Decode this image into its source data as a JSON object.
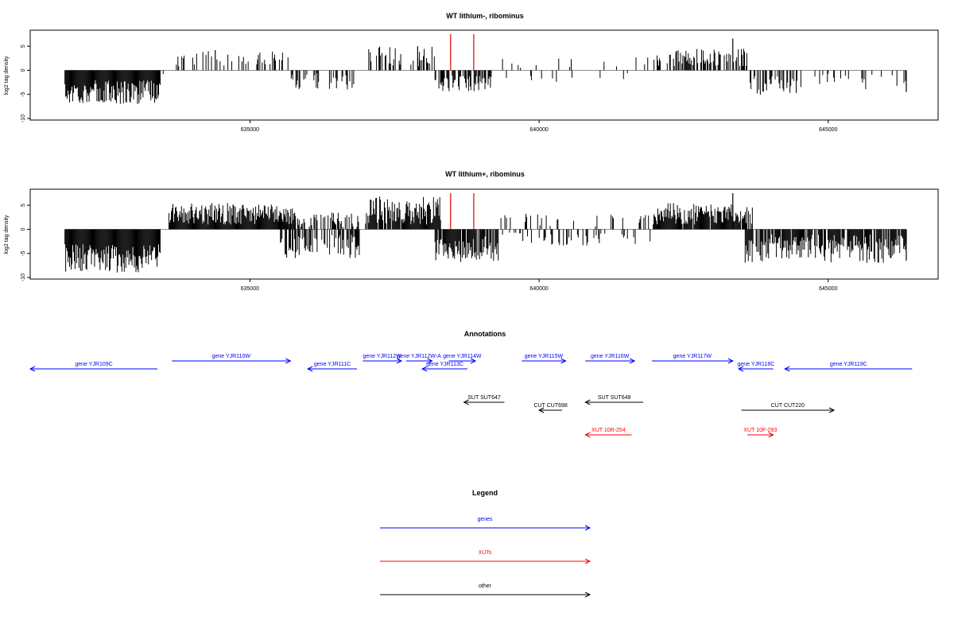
{
  "chart_data": [
    {
      "type": "bar",
      "title": "WT lithium-, ribominus",
      "xlabel": "",
      "ylabel": "log2 tag density",
      "xlim": [
        631200,
        646900
      ],
      "ylim": [
        -10,
        8
      ],
      "yticks": [
        -10,
        -5,
        0,
        5
      ],
      "xticks": [
        635000,
        640000,
        645000
      ],
      "xtick_labels": [
        "635000",
        "640000",
        "645000"
      ],
      "grid": false,
      "baseline": 0,
      "series": [
        {
          "values_by_region": [
            {
              "x_start": 631800,
              "x_end": 633450,
              "min": -7,
              "max": -2,
              "sign": -1,
              "density": 1.0
            },
            {
              "x_start": 633500,
              "x_end": 633540,
              "min": -0.8,
              "max": -0.2,
              "sign": -1,
              "density": 0.2
            },
            {
              "x_start": 633700,
              "x_end": 635700,
              "min": 0.8,
              "max": 4.2,
              "sign": 1,
              "density": 0.3
            },
            {
              "x_start": 635700,
              "x_end": 636800,
              "min": -4,
              "max": -0.6,
              "sign": -1,
              "density": 0.3
            },
            {
              "x_start": 637000,
              "x_end": 638200,
              "min": 0.8,
              "max": 5,
              "sign": 1,
              "density": 0.5
            },
            {
              "x_start": 638200,
              "x_end": 639200,
              "min": -4.5,
              "max": -1,
              "sign": -1,
              "density": 0.55
            },
            {
              "x_start": 639300,
              "x_end": 642000,
              "min": -2,
              "max": 2.5,
              "sign": 0,
              "density": 0.12
            },
            {
              "x_start": 642000,
              "x_end": 643600,
              "min": 0.8,
              "max": 4.5,
              "sign": 1,
              "density": 0.55
            },
            {
              "x_start": 643650,
              "x_end": 644500,
              "min": -5.5,
              "max": -1,
              "sign": -1,
              "density": 0.5
            },
            {
              "x_start": 644500,
              "x_end": 646350,
              "min": -4,
              "max": -0.6,
              "sign": -1,
              "density": 0.12
            }
          ],
          "special_spikes": [
            {
              "x": 643350,
              "y": 6.6
            },
            {
              "x": 634400,
              "y": 4.2
            },
            {
              "x": 637900,
              "y": 5.0
            },
            {
              "x": 646350,
              "y": -4.5
            }
          ]
        }
      ],
      "highlight_lines": {
        "color": "#e00000",
        "x": [
          638470,
          638870
        ],
        "y_top": 7.5
      }
    },
    {
      "type": "bar",
      "title": "WT lithium+, ribominus",
      "xlabel": "",
      "ylabel": "log2 tag density",
      "xlim": [
        631200,
        646900
      ],
      "ylim": [
        -10,
        8
      ],
      "yticks": [
        -10,
        -5,
        0,
        5
      ],
      "xticks": [
        635000,
        640000,
        645000
      ],
      "xtick_labels": [
        "635000",
        "640000",
        "645000"
      ],
      "grid": false,
      "baseline": 0,
      "series": [
        {
          "values_by_region": [
            {
              "x_start": 631800,
              "x_end": 633450,
              "min": -9,
              "max": -3,
              "sign": -1,
              "density": 1.0
            },
            {
              "x_start": 633600,
              "x_end": 635800,
              "min": 1,
              "max": 5.5,
              "sign": 1,
              "density": 1.0
            },
            {
              "x_start": 635500,
              "x_end": 636900,
              "min": -6,
              "max": -1,
              "sign": -1,
              "density": 0.6
            },
            {
              "x_start": 635500,
              "x_end": 636900,
              "min": 0.5,
              "max": 3.5,
              "sign": 1,
              "density": 0.4
            },
            {
              "x_start": 637000,
              "x_end": 638300,
              "min": 1,
              "max": 7,
              "sign": 1,
              "density": 0.9
            },
            {
              "x_start": 638200,
              "x_end": 639300,
              "min": -7,
              "max": -1.5,
              "sign": -1,
              "density": 0.9
            },
            {
              "x_start": 639300,
              "x_end": 642000,
              "min": -2.5,
              "max": 3,
              "sign": 0,
              "density": 0.35
            },
            {
              "x_start": 642000,
              "x_end": 643700,
              "min": 1,
              "max": 5.5,
              "sign": 1,
              "density": 0.95
            },
            {
              "x_start": 643550,
              "x_end": 646350,
              "min": -7,
              "max": -1,
              "sign": -1,
              "density": 0.85
            }
          ],
          "special_spikes": [
            {
              "x": 643350,
              "y": 7.5
            },
            {
              "x": 646350,
              "y": -6.5
            }
          ]
        }
      ],
      "highlight_lines": {
        "color": "#e00000",
        "x": [
          638470,
          638870
        ],
        "y_top": 7.5
      }
    },
    {
      "type": "annotation-track",
      "title": "Annotations",
      "xlim": [
        631200,
        646900
      ],
      "features": [
        {
          "label": "gene YJR109C",
          "start": 631200,
          "end": 633400,
          "strand": "-",
          "category": "genes",
          "row": 2
        },
        {
          "label": "gene YJR110W",
          "start": 633650,
          "end": 635700,
          "strand": "+",
          "category": "genes",
          "row": 1
        },
        {
          "label": "gene YJR111C",
          "start": 636000,
          "end": 636850,
          "strand": "-",
          "category": "genes",
          "row": 2
        },
        {
          "label": "gene YJR112W",
          "start": 636950,
          "end": 637620,
          "strand": "+",
          "category": "genes",
          "row": 1
        },
        {
          "label": "gene YJR112W-A",
          "start": 637700,
          "end": 638150,
          "strand": "+",
          "category": "genes",
          "row": 1
        },
        {
          "label": "gene YJR113C",
          "start": 637980,
          "end": 638760,
          "strand": "-",
          "category": "genes",
          "row": 2
        },
        {
          "label": "gene YJR114W",
          "start": 638440,
          "end": 638900,
          "strand": "+",
          "category": "genes",
          "row": 1
        },
        {
          "label": "gene YJR115W",
          "start": 639700,
          "end": 640460,
          "strand": "+",
          "category": "genes",
          "row": 1
        },
        {
          "label": "gene YJR116W",
          "start": 640800,
          "end": 641650,
          "strand": "+",
          "category": "genes",
          "row": 1
        },
        {
          "label": "gene YJR117W",
          "start": 641950,
          "end": 643350,
          "strand": "+",
          "category": "genes",
          "row": 1
        },
        {
          "label": "gene YJR118C",
          "start": 643450,
          "end": 644050,
          "strand": "-",
          "category": "genes",
          "row": 2
        },
        {
          "label": "gene YJR119C",
          "start": 644250,
          "end": 646450,
          "strand": "-",
          "category": "genes",
          "row": 2
        },
        {
          "label": "SUT SUT647",
          "start": 638700,
          "end": 639400,
          "strand": "-",
          "category": "other",
          "row": 5
        },
        {
          "label": "SUT SUT648",
          "start": 640800,
          "end": 641800,
          "strand": "-",
          "category": "other",
          "row": 5
        },
        {
          "label": "CUT CUT698",
          "start": 640000,
          "end": 640400,
          "strand": "-",
          "category": "other",
          "row": 6
        },
        {
          "label": "CUT CUT220",
          "start": 643500,
          "end": 645100,
          "strand": "+",
          "category": "other",
          "row": 6
        },
        {
          "label": "XUT 10R-254",
          "start": 640800,
          "end": 641600,
          "strand": "-",
          "category": "XUTs",
          "row": 7
        },
        {
          "label": "XUT 10F-293",
          "start": 643600,
          "end": 644050,
          "strand": "+",
          "category": "XUTs",
          "row": 7
        }
      ]
    }
  ],
  "legend": {
    "title": "Legend",
    "items": [
      {
        "label": "genes",
        "color": "#0000ff"
      },
      {
        "label": "XUTs",
        "color": "#ff0000"
      },
      {
        "label": "other",
        "color": "#000000"
      }
    ]
  },
  "colors": {
    "axis": "#000000",
    "zero_line": "#808080",
    "bars": "#000000",
    "highlight": "#e00000",
    "genes": "#0000ff",
    "XUTs": "#ff0000",
    "other": "#000000"
  }
}
